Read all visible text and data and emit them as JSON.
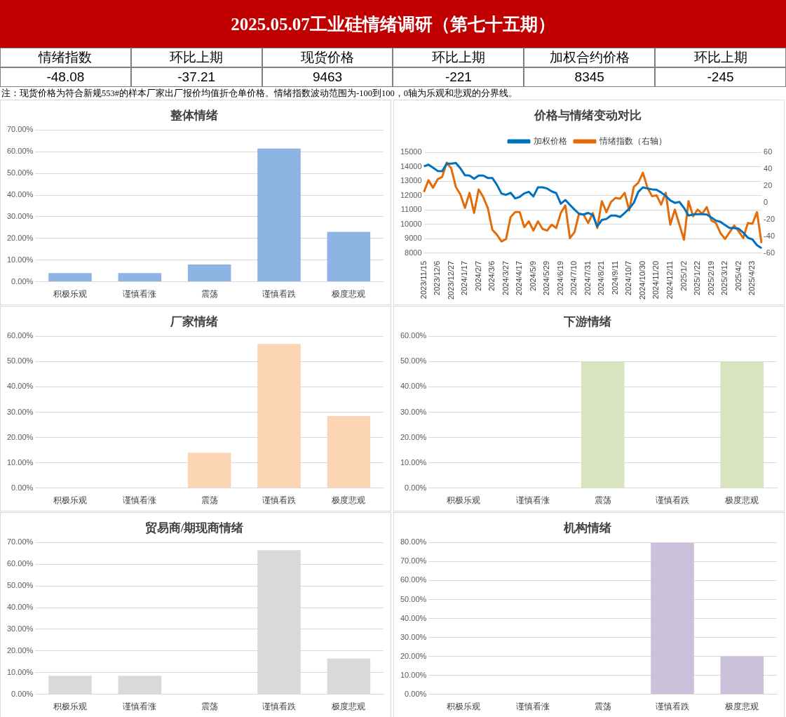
{
  "chart_data": [
    {
      "type": "other",
      "title": "2025.05.07工业硅情绪调研（第七十五期）",
      "categories": [
        "情绪指数",
        "环比上期",
        "现货价格",
        "环比上期",
        "加权合约价格",
        "环比上期"
      ],
      "values": [
        -48.08,
        -37.21,
        9463,
        -221,
        8345,
        -245
      ],
      "data_labels": true,
      "annotations": [
        "注：现货价格为符合新规553#的样本厂家出厂报价均值折仓单价格。情绪指数波动范围为-100到100，0轴为乐观和悲观的分界线。"
      ]
    },
    {
      "type": "bar",
      "title": "整体情绪",
      "categories": [
        "积极乐观",
        "谨慎看涨",
        "震荡",
        "谨慎看跌",
        "极度悲观"
      ],
      "values": [
        4,
        4,
        8,
        61.5,
        23
      ],
      "color": "#8eb4e3",
      "ylim": [
        0,
        70
      ],
      "yticks": [
        {
          "value": 0,
          "label": "0.00%"
        },
        {
          "value": 10,
          "label": "10.00%"
        },
        {
          "value": 20,
          "label": "20.00%"
        },
        {
          "value": 30,
          "label": "30.00%"
        },
        {
          "value": 40,
          "label": "40.00%"
        },
        {
          "value": 50,
          "label": "50.00%"
        },
        {
          "value": 60,
          "label": "60.00%"
        },
        {
          "value": 70,
          "label": "70.00%"
        }
      ],
      "grid": "y"
    },
    {
      "type": "line",
      "title": "价格与情绪变动对比",
      "categories": [
        "2023/11/15",
        null,
        null,
        "2023/12/6",
        null,
        null,
        "2023/12/27",
        null,
        null,
        "2024/1/17",
        null,
        null,
        "2024/2/7",
        null,
        null,
        "2024/3/6",
        null,
        null,
        "2024/3/27",
        null,
        null,
        "2024/4/17",
        null,
        null,
        "2024/5/9",
        null,
        null,
        "2024/5/29",
        null,
        null,
        "2024/6/19",
        null,
        null,
        "2024/7/10",
        null,
        null,
        "2024/7/31",
        null,
        null,
        "2024/8/21",
        null,
        null,
        "2024/9/11",
        null,
        null,
        "2024/10/7",
        null,
        null,
        "2024/10/30",
        null,
        null,
        "2024/11/20",
        null,
        null,
        "2024/12/11",
        null,
        null,
        "2025/1/2",
        null,
        null,
        "2025/1/22",
        null,
        null,
        "2025/2/19",
        null,
        null,
        "2025/3/12",
        null,
        null,
        "2025/4/2",
        null,
        null,
        "2025/4/23",
        null,
        null
      ],
      "series": [
        {
          "name": "加权价格",
          "color": "#0070c0",
          "values": [
            14040,
            14160,
            13950,
            13720,
            13700,
            14230,
            14230,
            14280,
            13900,
            13420,
            13400,
            13180,
            13400,
            13400,
            13230,
            13230,
            12760,
            12150,
            12060,
            12200,
            11810,
            11920,
            12160,
            12270,
            11950,
            12580,
            12580,
            12500,
            12300,
            12180,
            11440,
            11700,
            11360,
            11040,
            10740,
            10690,
            10800,
            10660,
            9870,
            10310,
            10380,
            10620,
            10620,
            10520,
            10800,
            11100,
            11500,
            12270,
            12580,
            12500,
            12440,
            12410,
            12220,
            11990,
            11670,
            11500,
            11570,
            11150,
            10620,
            10690,
            10710,
            10710,
            10690,
            10480,
            10270,
            10180,
            9960,
            9750,
            9750,
            9700,
            9430,
            9080,
            8960,
            8560,
            8350
          ]
        },
        {
          "name": "情绪指数（右轴）",
          "color": "#e36c09",
          "axis": "y2",
          "values": [
            13,
            27,
            18,
            28,
            31,
            48,
            41,
            19,
            10,
            -6,
            12,
            -12,
            16,
            7,
            -6,
            -32,
            -38,
            -46,
            -43,
            -17,
            -11,
            -11,
            -29,
            -22,
            -33,
            -22,
            -31,
            -33,
            -26,
            -30,
            -12,
            -3,
            -42,
            -35,
            -13,
            -14,
            -24,
            -12,
            -30,
            2,
            -11,
            1,
            6,
            5,
            12,
            -9,
            19,
            24,
            36,
            18,
            8,
            9,
            -2,
            12,
            -26,
            -8,
            -26,
            -44,
            2,
            -16,
            -8,
            -13,
            -5,
            -21,
            -24,
            -36,
            -43,
            -35,
            -27,
            -34,
            -42,
            -24,
            -25,
            -11,
            -48
          ]
        }
      ],
      "ylim": [
        8000,
        15000
      ],
      "yticks": [
        8000,
        9000,
        10000,
        11000,
        12000,
        13000,
        14000,
        15000
      ],
      "y2lim": [
        -60,
        60
      ],
      "y2ticks": [
        -60,
        -40,
        -20,
        0,
        20,
        40,
        60
      ],
      "legend": "top",
      "grid": "y"
    },
    {
      "type": "bar",
      "title": "厂家情绪",
      "categories": [
        "积极乐观",
        "谨慎看涨",
        "震荡",
        "谨慎看跌",
        "极度悲观"
      ],
      "values": [
        0,
        0,
        14,
        57,
        28.5
      ],
      "color": "#fcd5b5",
      "ylim": [
        0,
        60
      ],
      "yticks": [
        {
          "value": 0,
          "label": "0.00%"
        },
        {
          "value": 10,
          "label": "10.00%"
        },
        {
          "value": 20,
          "label": "20.00%"
        },
        {
          "value": 30,
          "label": "30.00%"
        },
        {
          "value": 40,
          "label": "40.00%"
        },
        {
          "value": 50,
          "label": "50.00%"
        },
        {
          "value": 60,
          "label": "60.00%"
        }
      ],
      "grid": "y"
    },
    {
      "type": "bar",
      "title": "下游情绪",
      "categories": [
        "积极乐观",
        "谨慎看涨",
        "震荡",
        "谨慎看跌",
        "极度悲观"
      ],
      "values": [
        0,
        0,
        50,
        0,
        50
      ],
      "color": "#d7e4bd",
      "ylim": [
        0,
        60
      ],
      "yticks": [
        {
          "value": 0,
          "label": "0.00%"
        },
        {
          "value": 10,
          "label": "10.00%"
        },
        {
          "value": 20,
          "label": "20.00%"
        },
        {
          "value": 30,
          "label": "30.00%"
        },
        {
          "value": 40,
          "label": "40.00%"
        },
        {
          "value": 50,
          "label": "50.00%"
        },
        {
          "value": 60,
          "label": "60.00%"
        }
      ],
      "grid": "y"
    },
    {
      "type": "bar",
      "title": "贸易商/期现商情绪",
      "categories": [
        "积极乐观",
        "谨慎看涨",
        "震荡",
        "谨慎看跌",
        "极度悲观"
      ],
      "values": [
        8.5,
        8.5,
        0,
        66.5,
        16.5
      ],
      "color": "#d9d9d9",
      "ylim": [
        0,
        70
      ],
      "yticks": [
        {
          "value": 0,
          "label": "0.00%"
        },
        {
          "value": 10,
          "label": "10.00%"
        },
        {
          "value": 20,
          "label": "20.00%"
        },
        {
          "value": 30,
          "label": "30.00%"
        },
        {
          "value": 40,
          "label": "40.00%"
        },
        {
          "value": 50,
          "label": "50.00%"
        },
        {
          "value": 60,
          "label": "60.00%"
        },
        {
          "value": 70,
          "label": "70.00%"
        }
      ],
      "grid": "y"
    },
    {
      "type": "bar",
      "title": "机构情绪",
      "categories": [
        "积极乐观",
        "谨慎看涨",
        "震荡",
        "谨慎看跌",
        "极度悲观"
      ],
      "values": [
        0,
        0,
        0,
        80,
        20
      ],
      "color": "#ccc1da",
      "ylim": [
        0,
        80
      ],
      "yticks": [
        {
          "value": 0,
          "label": "0.00%"
        },
        {
          "value": 10,
          "label": "10.00%"
        },
        {
          "value": 20,
          "label": "20.00%"
        },
        {
          "value": 30,
          "label": "30.00%"
        },
        {
          "value": 40,
          "label": "40.00%"
        },
        {
          "value": 50,
          "label": "50.00%"
        },
        {
          "value": 60,
          "label": "60.00%"
        },
        {
          "value": 70,
          "label": "70.00%"
        },
        {
          "value": 80,
          "label": "80.00%"
        }
      ],
      "grid": "y"
    }
  ]
}
